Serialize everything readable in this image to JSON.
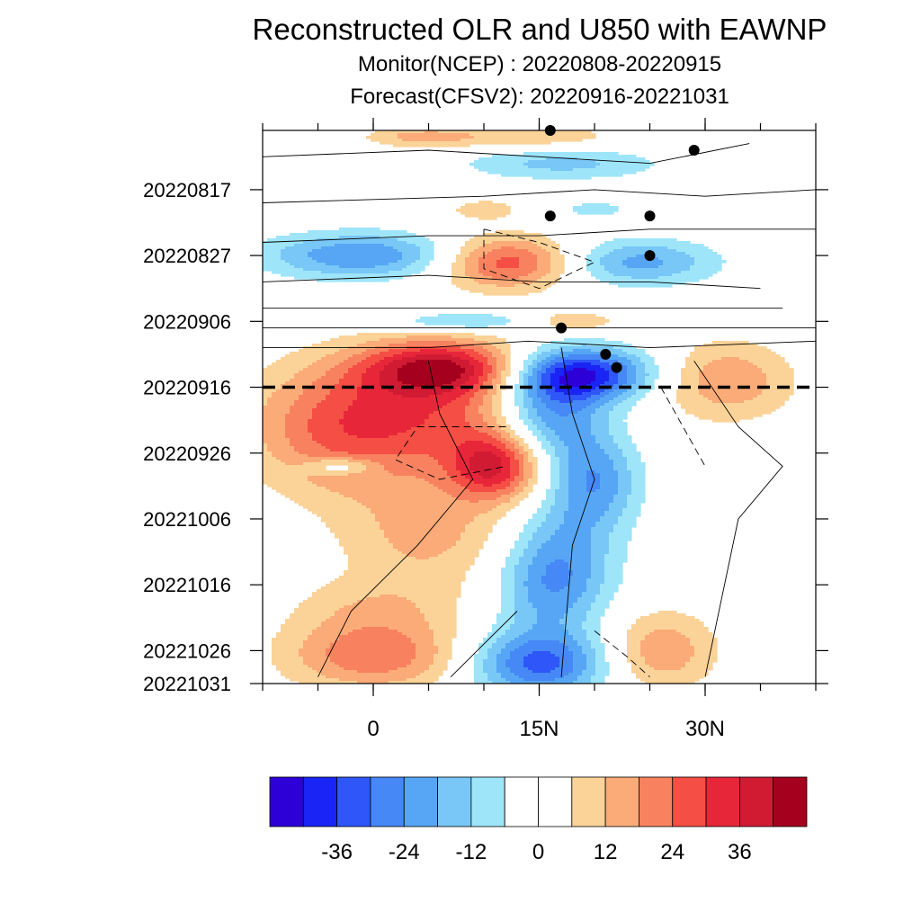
{
  "chart_data": {
    "type": "heatmap",
    "title": "Reconstructed OLR and U850 with EAWNP",
    "subtitle_lines": [
      "Monitor(NCEP)  :  20220808-20220915",
      "Forecast(CFSV2):  20220916-20221031"
    ],
    "xlabel": "",
    "ylabel": "",
    "x_axis": {
      "label_ticks": [
        "0",
        "15N",
        "30N"
      ],
      "label_values": [
        0,
        15,
        30
      ],
      "minor_step": 5,
      "range": [
        -10,
        40
      ]
    },
    "y_axis": {
      "start_date": "20220808",
      "end_date": "20221031",
      "reversed": true,
      "tick_labels": [
        "20220817",
        "20220827",
        "20220906",
        "20220916",
        "20220926",
        "20221006",
        "20221016",
        "20221026",
        "20221031"
      ]
    },
    "forecast_start_line": {
      "date": "20220916",
      "style": "dashed"
    },
    "colorbar": {
      "levels": [
        -42,
        -36,
        -30,
        -24,
        -18,
        -12,
        -6,
        0,
        6,
        12,
        18,
        24,
        30,
        36,
        42
      ],
      "tick_labels": [
        "-36",
        "-24",
        "-12",
        "0",
        "12",
        "24",
        "36"
      ],
      "tick_values": [
        -36,
        -24,
        -12,
        0,
        12,
        24,
        36
      ],
      "colors": [
        "#2d00d8",
        "#1a25f5",
        "#2e56f8",
        "#4688f5",
        "#56a6f5",
        "#78c7f6",
        "#9ee5fa",
        "#ffffff",
        "#ffffff",
        "#fbd398",
        "#fbab78",
        "#f8825f",
        "#f54e44",
        "#e8263a",
        "#d01b33",
        "#a6001f"
      ]
    },
    "anomaly_blobs": [
      {
        "lat": 14,
        "date": "20220809",
        "value": 11,
        "dlat": 9,
        "days": 2.0
      },
      {
        "lat": 4,
        "date": "20220809",
        "value": 12,
        "dlat": 5,
        "days": 1.5
      },
      {
        "lat": 17,
        "date": "20220813",
        "value": -14,
        "dlat": 9,
        "days": 2.5
      },
      {
        "lat": 10,
        "date": "20220820",
        "value": 11,
        "dlat": 3,
        "days": 1.5
      },
      {
        "lat": 20,
        "date": "20220820",
        "value": -10,
        "dlat": 3,
        "days": 1.2
      },
      {
        "lat": -1,
        "date": "20220827",
        "value": -24,
        "dlat": 9,
        "days": 3.5
      },
      {
        "lat": 12,
        "date": "20220828",
        "value": 29,
        "dlat": 6,
        "days": 4.0
      },
      {
        "lat": 24,
        "date": "20220828",
        "value": -20,
        "dlat": 7,
        "days": 3.5
      },
      {
        "lat": 8,
        "date": "20220906",
        "value": -14,
        "dlat": 7,
        "days": 1.5
      },
      {
        "lat": 18,
        "date": "20220906",
        "value": 13,
        "dlat": 4,
        "days": 1.5
      },
      {
        "lat": 6,
        "date": "20220913",
        "value": 34,
        "dlat": 7,
        "days": 4.0
      },
      {
        "lat": 19,
        "date": "20220914",
        "value": -40,
        "dlat": 6,
        "days": 4.0
      },
      {
        "lat": 32,
        "date": "20220915",
        "value": 17,
        "dlat": 6,
        "days": 6.0
      },
      {
        "lat": 3,
        "date": "20220920",
        "value": 28,
        "dlat": 12,
        "days": 9.0
      },
      {
        "lat": 16,
        "date": "20220920",
        "value": -28,
        "dlat": 5,
        "days": 7.0
      },
      {
        "lat": -4,
        "date": "20220925",
        "value": 10,
        "dlat": 7,
        "days": 9.0
      },
      {
        "lat": 11,
        "date": "20220928",
        "value": 32,
        "dlat": 4,
        "days": 5.0
      },
      {
        "lat": 20,
        "date": "20220930",
        "value": -22,
        "dlat": 4,
        "days": 7.0
      },
      {
        "lat": -3,
        "date": "20220928",
        "value": -16,
        "dlat": 3,
        "days": 1.3
      },
      {
        "lat": 5,
        "date": "20221008",
        "value": 14,
        "dlat": 8,
        "days": 9.0
      },
      {
        "lat": 17,
        "date": "20221010",
        "value": -15,
        "dlat": 5,
        "days": 8.0
      },
      {
        "lat": 16,
        "date": "20221017",
        "value": -18,
        "dlat": 5,
        "days": 7.0
      },
      {
        "lat": 0,
        "date": "20221027",
        "value": 22,
        "dlat": 8,
        "days": 5.0
      },
      {
        "lat": 15,
        "date": "20221028",
        "value": -32,
        "dlat": 6,
        "days": 5.0
      },
      {
        "lat": 26,
        "date": "20221026",
        "value": 17,
        "dlat": 5,
        "days": 6.0
      },
      {
        "lat": 0,
        "date": "20221020",
        "value": 10,
        "dlat": 8,
        "days": 5.0
      }
    ],
    "u850_contours": [
      {
        "style": "solid",
        "points": [
          [
            -10,
            "20220812"
          ],
          [
            5,
            "20220811"
          ],
          [
            15,
            "20220812"
          ],
          [
            25,
            "20220813"
          ],
          [
            34,
            "20220810"
          ]
        ]
      },
      {
        "style": "solid",
        "points": [
          [
            -10,
            "20220819"
          ],
          [
            10,
            "20220818"
          ],
          [
            20,
            "20220817"
          ],
          [
            30,
            "20220818"
          ],
          [
            40,
            "20220817"
          ]
        ]
      },
      {
        "style": "solid",
        "points": [
          [
            -10,
            "20220825"
          ],
          [
            5,
            "20220824"
          ],
          [
            15,
            "20220824"
          ],
          [
            25,
            "20220823"
          ],
          [
            40,
            "20220823"
          ]
        ]
      },
      {
        "style": "solid",
        "points": [
          [
            -10,
            "20220831"
          ],
          [
            5,
            "20220830"
          ],
          [
            15,
            "20220831"
          ],
          [
            25,
            "20220831"
          ],
          [
            35,
            "20220901"
          ]
        ]
      },
      {
        "style": "solid",
        "points": [
          [
            -10,
            "20220904"
          ],
          [
            10,
            "20220904"
          ],
          [
            20,
            "20220904"
          ],
          [
            30,
            "20220904"
          ],
          [
            37,
            "20220904"
          ]
        ]
      },
      {
        "style": "solid",
        "points": [
          [
            -10,
            "20220907"
          ],
          [
            10,
            "20220907"
          ],
          [
            20,
            "20220907"
          ],
          [
            30,
            "20220907"
          ],
          [
            40,
            "20220907"
          ]
        ]
      },
      {
        "style": "solid",
        "points": [
          [
            -10,
            "20220910"
          ],
          [
            5,
            "20220910"
          ],
          [
            14,
            "20220909"
          ],
          [
            25,
            "20220910"
          ],
          [
            40,
            "20220909"
          ]
        ]
      },
      {
        "style": "solid",
        "points": [
          [
            5,
            "20220912"
          ],
          [
            6,
            "20220920"
          ],
          [
            9,
            "20220930"
          ],
          [
            4,
            "20221010"
          ],
          [
            -2,
            "20221020"
          ],
          [
            -5,
            "20221030"
          ]
        ]
      },
      {
        "style": "solid",
        "points": [
          [
            17,
            "20220910"
          ],
          [
            18,
            "20220920"
          ],
          [
            20,
            "20220930"
          ],
          [
            18,
            "20221010"
          ],
          [
            17,
            "20221030"
          ]
        ]
      },
      {
        "style": "solid",
        "points": [
          [
            29,
            "20220912"
          ],
          [
            33,
            "20220922"
          ],
          [
            37,
            "20220928"
          ],
          [
            33,
            "20221006"
          ],
          [
            30,
            "20221030"
          ]
        ]
      },
      {
        "style": "solid",
        "points": [
          [
            13,
            "20221020"
          ],
          [
            10,
            "20221025"
          ],
          [
            7,
            "20221030"
          ]
        ]
      },
      {
        "style": "dashed",
        "points": [
          [
            10,
            "20220823"
          ],
          [
            15,
            "20220825"
          ],
          [
            20,
            "20220828"
          ],
          [
            15,
            "20220901"
          ],
          [
            10,
            "20220829"
          ],
          [
            10,
            "20220823"
          ]
        ]
      },
      {
        "style": "dashed",
        "points": [
          [
            12,
            "20220922"
          ],
          [
            4,
            "20220922"
          ],
          [
            2,
            "20220927"
          ],
          [
            6,
            "20220930"
          ],
          [
            12,
            "20220928"
          ]
        ]
      },
      {
        "style": "dashed",
        "points": [
          [
            26,
            "20220916"
          ],
          [
            28,
            "20220922"
          ],
          [
            30,
            "20220928"
          ]
        ]
      },
      {
        "style": "dashed",
        "points": [
          [
            20,
            "20221023"
          ],
          [
            23,
            "20221027"
          ],
          [
            25,
            "20221030"
          ]
        ]
      }
    ],
    "tc_markers": [
      {
        "lat": 16,
        "date": "20220808"
      },
      {
        "lat": 29,
        "date": "20220811"
      },
      {
        "lat": 16,
        "date": "20220821"
      },
      {
        "lat": 25,
        "date": "20220821"
      },
      {
        "lat": 25,
        "date": "20220827"
      },
      {
        "lat": 17,
        "date": "20220907"
      },
      {
        "lat": 21,
        "date": "20220911"
      },
      {
        "lat": 22,
        "date": "20220913"
      }
    ]
  }
}
